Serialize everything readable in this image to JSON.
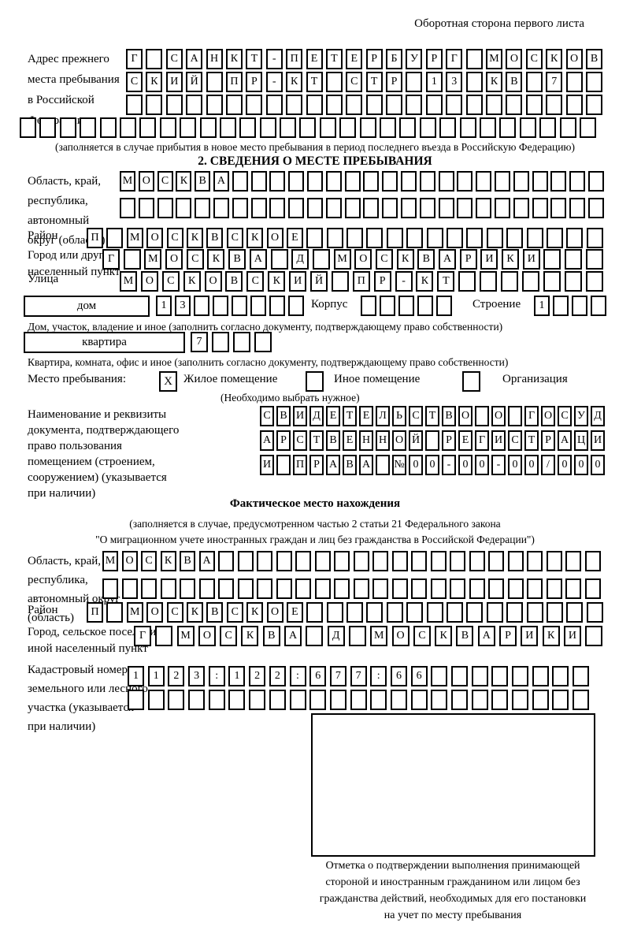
{
  "header_note": "Оборотная сторона первого листа",
  "prev_address": {
    "label_lines": [
      "Адрес прежнего",
      "места пребывания",
      "в Российской",
      "Федерации"
    ],
    "rows": [
      {
        "text": "Г САНКТ-ПЕТЕРБУРГ МОСКОВ",
        "count": 24
      },
      {
        "text": "СКИЙ ПР-КТ СТР 13 КВ 7",
        "count": 24
      },
      {
        "text": "",
        "count": 24
      },
      {
        "text": "",
        "count": 29
      }
    ],
    "caption": "(заполняется в случае прибытия в новое место пребывания в период последнего въезда в Российскую Федерацию)"
  },
  "section2": {
    "title": "2. СВЕДЕНИЯ О МЕСТЕ ПРЕБЫВАНИЯ",
    "oblast": {
      "label_lines": [
        "Область, край,",
        "республика,",
        "автономный",
        "округ (область)"
      ],
      "rows": [
        {
          "text": "МОСКВА",
          "count": 26
        },
        {
          "text": "",
          "count": 26
        }
      ]
    },
    "raion": {
      "label": "Район",
      "row": {
        "text": "П МОСКВСКОЕ",
        "count": 26
      }
    },
    "gorod": {
      "label_lines": [
        "Город или другой",
        "населенный пункт"
      ],
      "row": {
        "text": "Г МОСКВА Д МОСКВАРИКИ",
        "count": 24
      }
    },
    "ulitsa": {
      "label": "Улица",
      "row": {
        "text": "МОСКОВСКИЙ ПР-КТ",
        "count": 23
      }
    },
    "dom": {
      "box_label": "дом",
      "number_row": {
        "text": "13",
        "count": 8
      },
      "korpus_label": "Корпус",
      "korpus_row": {
        "text": "",
        "count": 5
      },
      "stroenie_label": "Строение",
      "stroenie_row": {
        "text": "1",
        "count": 4
      },
      "caption": "Дом, участок, владение и иное (заполнить согласно документу, подтверждающему право собственности)"
    },
    "kvartira": {
      "box_label": "квартира",
      "number_row": {
        "text": "7",
        "count": 4
      },
      "caption": "Квартира, комната, офис и иное (заполнить согласно документу, подтверждающему право собственности)"
    },
    "mesto": {
      "label": "Место пребывания:",
      "options": [
        {
          "label": "Жилое помещение",
          "mark": "X"
        },
        {
          "label": "Иное помещение",
          "mark": ""
        },
        {
          "label": "Организация",
          "mark": ""
        }
      ],
      "hint": "(Необходимо выбрать нужное)"
    },
    "document": {
      "label_lines": [
        "Наименование и реквизиты",
        "документа, подтверждающего",
        "право пользования",
        "помещением (строением,",
        "сооружением) (указывается",
        "при наличии)"
      ],
      "rows": [
        {
          "text": "СВИДЕТЕЛЬСТВО О ГОСУД",
          "count": 21
        },
        {
          "text": "АРСТВЕННОЙ РЕГИСТРАЦИ",
          "count": 21
        },
        {
          "text": "И ПРАВА №00-00-00/000",
          "count": 21
        }
      ]
    }
  },
  "factual": {
    "title": "Фактическое место нахождения",
    "subtitle_lines": [
      "(заполняется в случае, предусмотренном частью 2 статьи 21 Федерального закона",
      "\"О миграционном учете иностранных граждан и лиц без гражданства в Российской Федерации\")"
    ],
    "oblast": {
      "label_lines": [
        "Область, край,",
        "республика,",
        "автономный округ",
        "(область)"
      ],
      "rows": [
        {
          "text": "МОСКВА",
          "count": 26
        },
        {
          "text": "",
          "count": 26
        }
      ]
    },
    "raion": {
      "label": "Район",
      "row": {
        "text": "П МОСКВСКОЕ",
        "count": 26
      }
    },
    "gorod": {
      "label_lines": [
        "Город, сельское поселение,",
        "иной населенный пункт"
      ],
      "row": {
        "text": "Г МОСКВА Д МОСКВАРИКИ",
        "count": 22
      }
    },
    "kadastr": {
      "label_lines": [
        "Кадастровый номер",
        "земельного или лесного",
        "участка (указывается",
        "при наличии)"
      ],
      "rows": [
        {
          "text": "1123:122:677:66",
          "count": 23
        },
        {
          "text": "",
          "count": 23
        }
      ]
    },
    "stamp_caption_lines": [
      "Отметка о подтверждении выполнения принимающей",
      "стороной и иностранным гражданином или лицом без",
      "гражданства действий, необходимых для его постановки",
      "на учет по месту пребывания"
    ]
  }
}
